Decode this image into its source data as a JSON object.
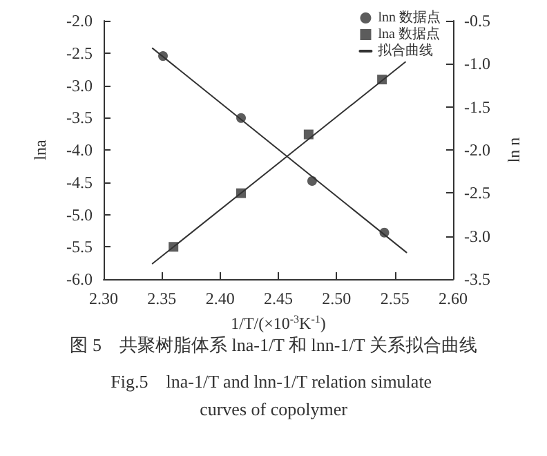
{
  "chart_data": {
    "type": "scatter",
    "title": "图 5　共聚树脂体系 lna-1/T 和 lnn-1/T 关系拟合曲线",
    "subtitle": "Fig.5　lna-1/T and lnn-1/T relation simulate curves of copolymer",
    "xlabel": "1/T/(×10$^{-3}$K$^{-1}$)",
    "ylabel": "lna",
    "y2label": "ln n",
    "xlim": [
      2.3,
      2.6
    ],
    "xticks": [
      {
        "value": 2.3,
        "label": "2.30"
      },
      {
        "value": 2.35,
        "label": "2.35"
      },
      {
        "value": 2.4,
        "label": "2.40"
      },
      {
        "value": 2.45,
        "label": "2.45"
      },
      {
        "value": 2.5,
        "label": "2.50"
      },
      {
        "value": 2.55,
        "label": "2.55"
      },
      {
        "value": 2.6,
        "label": "2.60"
      }
    ],
    "ylim": [
      -6,
      -2
    ],
    "yticks": [
      {
        "value": -6,
        "label": "-6.0"
      },
      {
        "value": -5.5,
        "label": "-5.5"
      },
      {
        "value": -5,
        "label": "-5.0"
      },
      {
        "value": -4.5,
        "label": "-4.5"
      },
      {
        "value": -4,
        "label": "-4.0"
      },
      {
        "value": -3.5,
        "label": "-3.5"
      },
      {
        "value": -3,
        "label": "-3.0"
      },
      {
        "value": -2.5,
        "label": "-2.5"
      },
      {
        "value": -2,
        "label": "-2.0"
      }
    ],
    "y2lim": [
      -3.5,
      -0.5
    ],
    "y2ticks": [
      {
        "value": -3.5,
        "label": "-3.5"
      },
      {
        "value": -3,
        "label": "-3.0"
      },
      {
        "value": -2.5,
        "label": "-2.5"
      },
      {
        "value": -2,
        "label": "-2.0"
      },
      {
        "value": -1.5,
        "label": "-1.5"
      },
      {
        "value": -1,
        "label": "-1.0"
      },
      {
        "value": -0.5,
        "label": "-0.5"
      }
    ],
    "legend": "top right",
    "grid": false,
    "series": [
      {
        "name": "lnn 数据点",
        "axis": "y2",
        "marker": "circle",
        "color": "#333333",
        "x": [
          2.351,
          2.418,
          2.479,
          2.541
        ],
        "values": [
          -0.91,
          -1.63,
          -2.36,
          -2.96
        ]
      },
      {
        "name": "lna 数据点",
        "marker": "square",
        "color": "#333333",
        "x": [
          2.36,
          2.418,
          2.476,
          2.539
        ],
        "values": [
          -5.5,
          -4.67,
          -3.76,
          -2.91
        ]
      },
      {
        "name": "拟合曲线",
        "type": "line",
        "axis": "y2",
        "marker": "none",
        "color": "#333333",
        "x": [
          2.342,
          2.56
        ],
        "values": [
          -0.82,
          -3.19
        ]
      },
      {
        "type": "line",
        "marker": "none",
        "color": "#333333",
        "x": [
          2.342,
          2.559
        ],
        "values": [
          -5.76,
          -2.64
        ]
      }
    ]
  }
}
